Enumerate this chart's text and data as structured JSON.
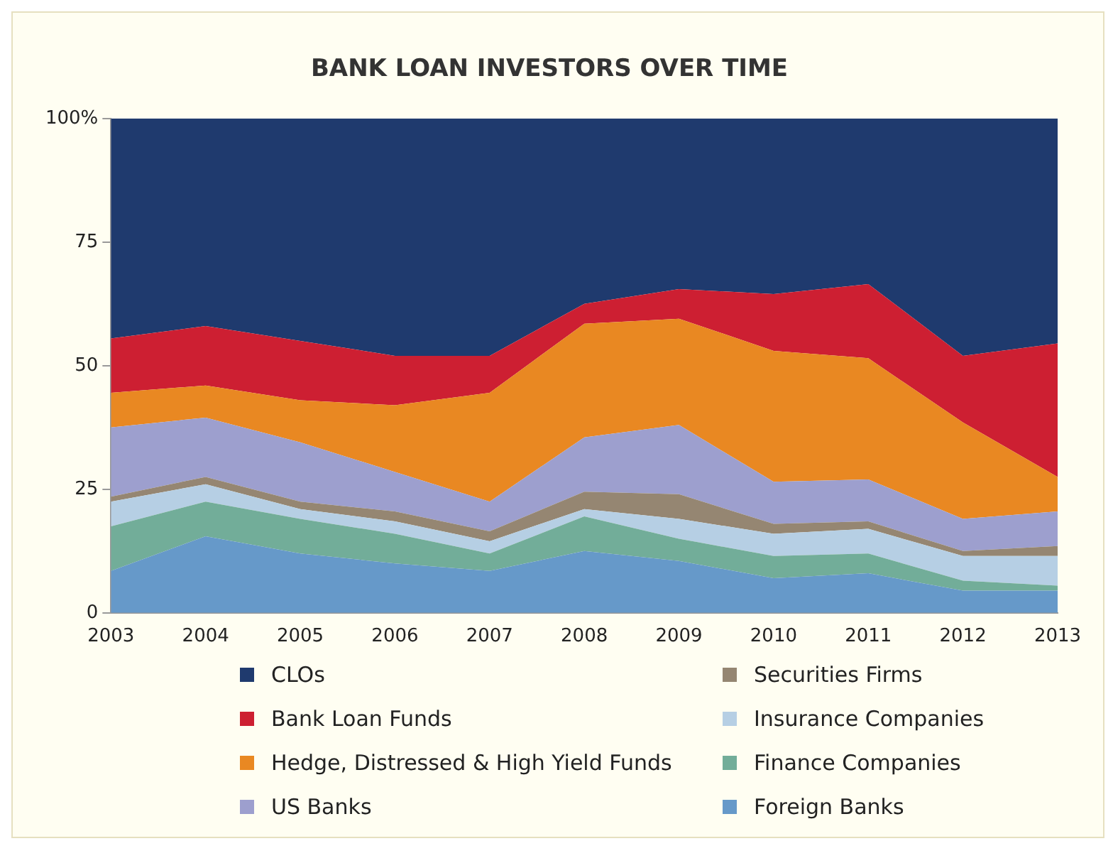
{
  "chart_data": {
    "type": "area",
    "title": "BANK LOAN INVESTORS OVER TIME",
    "categories": [
      "2003",
      "2004",
      "2005",
      "2006",
      "2007",
      "2008",
      "2009",
      "2010",
      "2011",
      "2012",
      "2013"
    ],
    "stacked": true,
    "ylim": [
      0,
      100
    ],
    "yticks": [
      0,
      25,
      50,
      75,
      {
        "value": 100,
        "label": "100%"
      }
    ],
    "grid": false,
    "legend": "bottom",
    "series": [
      {
        "name": "Foreign Banks",
        "color": "#6699c9",
        "values": [
          8.5,
          15.5,
          12,
          10,
          8.5,
          12.5,
          10.5,
          7,
          8,
          4.5,
          4.5
        ]
      },
      {
        "name": "Finance Companies",
        "color": "#72ad99",
        "values": [
          9,
          7,
          7,
          6,
          3.5,
          7,
          4.5,
          4.5,
          4,
          2,
          1
        ]
      },
      {
        "name": "Insurance Companies",
        "color": "#b6cfe4",
        "values": [
          5,
          3.5,
          2,
          2.5,
          2.5,
          1.5,
          4,
          4.5,
          5,
          5,
          6
        ]
      },
      {
        "name": "Securities Firms",
        "color": "#958672",
        "values": [
          1,
          1.5,
          1.5,
          2,
          2,
          3.5,
          5,
          2,
          1.5,
          1,
          2
        ]
      },
      {
        "name": "US Banks",
        "color": "#9d9fce",
        "values": [
          14,
          12,
          12,
          8,
          6,
          11,
          14,
          8.5,
          8.5,
          6.5,
          7
        ]
      },
      {
        "name": "Hedge, Distressed & High Yield Funds",
        "color": "#e98822",
        "values": [
          7,
          6.5,
          8.5,
          13.5,
          22,
          23,
          21.5,
          26.5,
          24.5,
          19.5,
          7
        ]
      },
      {
        "name": "Bank Loan Funds",
        "color": "#cd1f32",
        "values": [
          11,
          12,
          12,
          10,
          7.5,
          4,
          6,
          11.5,
          15,
          13.5,
          27
        ]
      },
      {
        "name": "CLOs",
        "color": "#1f3a6e",
        "values": [
          44.5,
          42,
          45,
          48,
          48,
          37.5,
          34.5,
          35.5,
          33.5,
          48,
          45.5
        ]
      }
    ]
  }
}
